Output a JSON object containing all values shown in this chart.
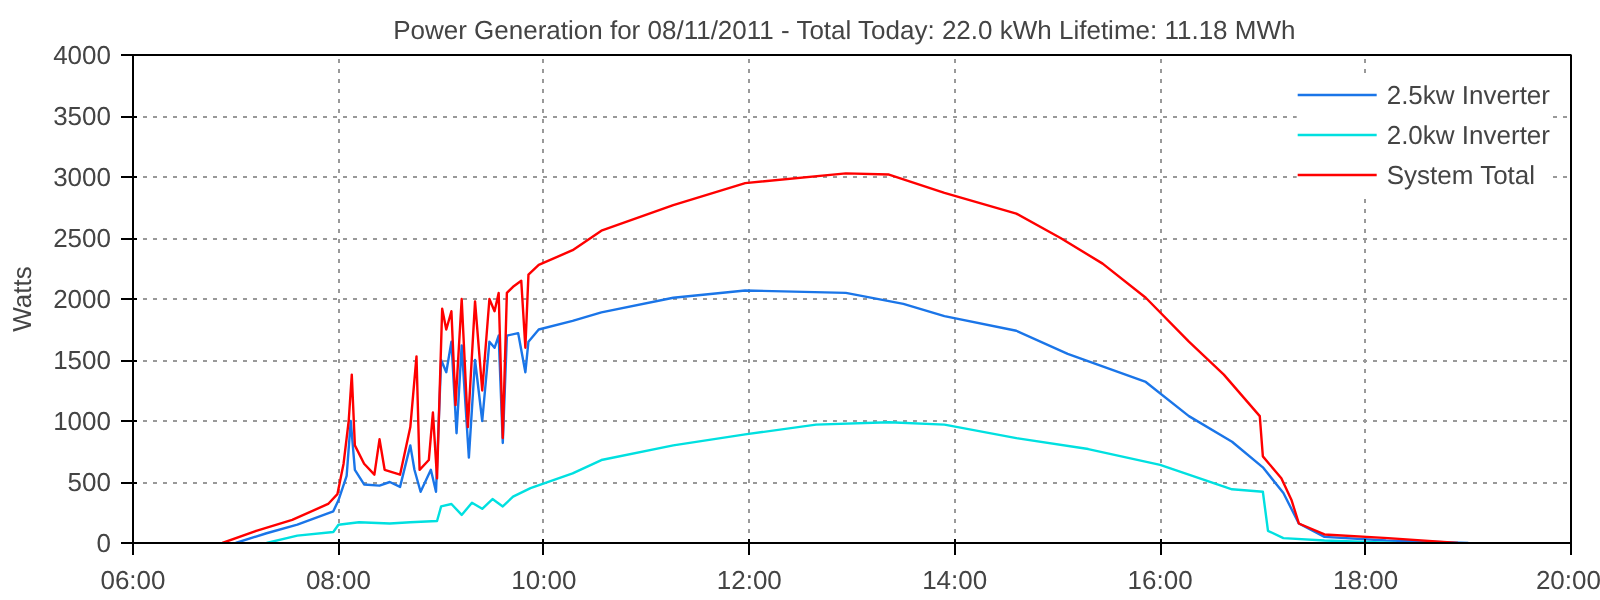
{
  "chart_data": {
    "type": "line",
    "title": "Power Generation for 08/11/2011 - Total Today: 22.0 kWh   Lifetime: 11.18 MWh",
    "ylabel": "Watts",
    "xlim": [
      6,
      20
    ],
    "xticks": [
      {
        "value": 6,
        "label": "06:00"
      },
      {
        "value": 8,
        "label": "08:00"
      },
      {
        "value": 10,
        "label": "10:00"
      },
      {
        "value": 12,
        "label": "12:00"
      },
      {
        "value": 14,
        "label": "14:00"
      },
      {
        "value": 16,
        "label": "16:00"
      },
      {
        "value": 18,
        "label": "18:00"
      },
      {
        "value": 20,
        "label": "20:00"
      }
    ],
    "ylim": [
      0,
      4000
    ],
    "yticks": [
      0,
      500,
      1000,
      1500,
      2000,
      2500,
      3000,
      3500,
      4000
    ],
    "grid": true,
    "legend": "top right",
    "line_style": "solid",
    "marker": "none",
    "series": [
      {
        "name": "2.5kw Inverter",
        "color": "#1a75e8",
        "x": [
          7.0,
          7.3,
          7.6,
          7.95,
          8.0,
          8.08,
          8.12,
          8.16,
          8.25,
          8.4,
          8.5,
          8.6,
          8.7,
          8.74,
          8.8,
          8.9,
          8.95,
          9.0,
          9.05,
          9.1,
          9.15,
          9.2,
          9.27,
          9.33,
          9.4,
          9.47,
          9.52,
          9.56,
          9.6,
          9.64,
          9.75,
          9.82,
          9.85,
          9.95,
          10.28,
          10.56,
          11.26,
          11.96,
          12.94,
          13.5,
          13.9,
          14.6,
          15.1,
          15.86,
          16.28,
          16.7,
          17.0,
          17.2,
          17.35,
          17.6,
          18.2,
          19.0
        ],
        "values": [
          0,
          80,
          150,
          260,
          350,
          550,
          1000,
          600,
          480,
          470,
          500,
          460,
          800,
          600,
          420,
          600,
          420,
          1500,
          1400,
          1650,
          900,
          1620,
          700,
          1500,
          1000,
          1650,
          1600,
          1700,
          820,
          1700,
          1720,
          1400,
          1650,
          1750,
          1820,
          1890,
          2010,
          2070,
          2050,
          1960,
          1860,
          1740,
          1550,
          1320,
          1040,
          830,
          620,
          410,
          160,
          50,
          20,
          0
        ]
      },
      {
        "name": "2.0kw Inverter",
        "color": "#00e0e0",
        "x": [
          7.3,
          7.6,
          7.95,
          8.0,
          8.2,
          8.5,
          8.7,
          8.96,
          9.0,
          9.1,
          9.2,
          9.3,
          9.4,
          9.5,
          9.6,
          9.7,
          9.87,
          10.28,
          10.56,
          11.26,
          11.96,
          12.65,
          13.36,
          13.9,
          14.6,
          15.3,
          16.0,
          16.7,
          17.0,
          17.05,
          17.2,
          17.6,
          18.3
        ],
        "values": [
          0,
          60,
          90,
          150,
          170,
          160,
          170,
          180,
          300,
          320,
          230,
          330,
          280,
          360,
          300,
          380,
          450,
          570,
          680,
          800,
          890,
          970,
          990,
          970,
          860,
          770,
          640,
          440,
          420,
          100,
          40,
          20,
          0
        ]
      },
      {
        "name": "System Total",
        "color": "#ff0000",
        "x": [
          6.87,
          7.2,
          7.55,
          7.9,
          7.99,
          8.05,
          8.1,
          8.13,
          8.16,
          8.25,
          8.35,
          8.4,
          8.45,
          8.6,
          8.7,
          8.76,
          8.79,
          8.88,
          8.92,
          8.96,
          9.01,
          9.05,
          9.1,
          9.14,
          9.2,
          9.26,
          9.33,
          9.4,
          9.47,
          9.52,
          9.56,
          9.6,
          9.64,
          9.7,
          9.78,
          9.82,
          9.85,
          9.95,
          10.28,
          10.56,
          11.26,
          11.96,
          12.94,
          13.36,
          13.9,
          14.6,
          15.03,
          15.44,
          15.86,
          16.28,
          16.62,
          16.97,
          17.0,
          17.18,
          17.28,
          17.35,
          17.6,
          18.22,
          18.9
        ],
        "values": [
          0,
          100,
          190,
          320,
          400,
          650,
          1000,
          1380,
          800,
          650,
          560,
          850,
          600,
          560,
          950,
          1530,
          600,
          680,
          1070,
          530,
          1920,
          1750,
          1900,
          1130,
          2000,
          950,
          1980,
          1250,
          2000,
          1900,
          2050,
          860,
          2050,
          2100,
          2150,
          1600,
          2200,
          2280,
          2400,
          2560,
          2770,
          2950,
          3030,
          3020,
          2870,
          2700,
          2500,
          2290,
          2010,
          1650,
          1380,
          1040,
          710,
          530,
          350,
          160,
          70,
          40,
          0
        ]
      }
    ]
  }
}
